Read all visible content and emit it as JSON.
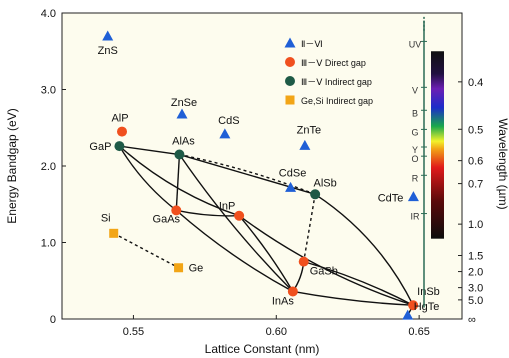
{
  "chart_data": {
    "type": "scatter",
    "xlabel": "Lattice Constant (nm)",
    "ylabel": "Energy Bandgap (eV)",
    "y2label": "Wavelength (µm)",
    "xlim": [
      0.525,
      0.665
    ],
    "ylim": [
      0.0,
      4.0
    ],
    "xticks": [
      "0.55",
      "0.60",
      "0.65"
    ],
    "xtick_values": [
      0.55,
      0.6,
      0.65
    ],
    "yticks": [
      "0",
      "1.0",
      "2.0",
      "3.0",
      "4.0"
    ],
    "ytick_values": [
      0,
      1,
      2,
      3,
      4
    ],
    "wavelength_ticks": [
      {
        "label": "0.4",
        "ev": 3.1
      },
      {
        "label": "0.5",
        "ev": 2.48
      },
      {
        "label": "0.6",
        "ev": 2.07
      },
      {
        "label": "0.7",
        "ev": 1.77
      },
      {
        "label": "1.0",
        "ev": 1.24
      },
      {
        "label": "1.5",
        "ev": 0.83
      },
      {
        "label": "2.0",
        "ev": 0.62
      },
      {
        "label": "3.0",
        "ev": 0.41
      },
      {
        "label": "5.0",
        "ev": 0.25
      },
      {
        "label": "∞",
        "ev": 0.0
      }
    ],
    "spectrum_labels": [
      {
        "label": "UV",
        "ev": 3.55
      },
      {
        "label": "V",
        "ev": 2.95
      },
      {
        "label": "B",
        "ev": 2.65
      },
      {
        "label": "G",
        "ev": 2.4
      },
      {
        "label": "Y",
        "ev": 2.17
      },
      {
        "label": "O",
        "ev": 2.05
      },
      {
        "label": "R",
        "ev": 1.8
      },
      {
        "label": "IR",
        "ev": 1.3
      }
    ],
    "legend": [
      {
        "label": "Ⅱ－Ⅵ",
        "marker": "triangle",
        "color": "#1f5fd6"
      },
      {
        "label": "Ⅲ－Ⅴ Direct gap",
        "marker": "circle",
        "color": "#f0501e"
      },
      {
        "label": "Ⅲ－Ⅴ Indirect gap",
        "marker": "circle",
        "color": "#1e5a46"
      },
      {
        "label": "Ge,Si Indirect gap",
        "marker": "square",
        "color": "#f2a516"
      }
    ],
    "points": [
      {
        "name": "ZnS",
        "x": 0.541,
        "y": 3.7,
        "group": 0
      },
      {
        "name": "ZnSe",
        "x": 0.567,
        "y": 2.68,
        "group": 0
      },
      {
        "name": "CdS",
        "x": 0.582,
        "y": 2.42,
        "group": 0
      },
      {
        "name": "ZnTe",
        "x": 0.61,
        "y": 2.27,
        "group": 0
      },
      {
        "name": "CdSe",
        "x": 0.605,
        "y": 1.72,
        "group": 0
      },
      {
        "name": "CdTe",
        "x": 0.648,
        "y": 1.6,
        "group": 0
      },
      {
        "name": "HgTe",
        "x": 0.646,
        "y": 0.05,
        "group": 0
      },
      {
        "name": "AlP",
        "x": 0.546,
        "y": 2.45,
        "group": 1
      },
      {
        "name": "GaAs",
        "x": 0.565,
        "y": 1.42,
        "group": 1
      },
      {
        "name": "InP",
        "x": 0.587,
        "y": 1.35,
        "group": 1
      },
      {
        "name": "GaSb",
        "x": 0.6096,
        "y": 0.75,
        "group": 1
      },
      {
        "name": "InAs",
        "x": 0.6058,
        "y": 0.36,
        "group": 1
      },
      {
        "name": "InSb",
        "x": 0.6479,
        "y": 0.18,
        "group": 1
      },
      {
        "name": "GaP",
        "x": 0.5451,
        "y": 2.26,
        "group": 2
      },
      {
        "name": "AlAs",
        "x": 0.5661,
        "y": 2.15,
        "group": 2
      },
      {
        "name": "AlSb",
        "x": 0.6136,
        "y": 1.63,
        "group": 2
      },
      {
        "name": "Si",
        "x": 0.5431,
        "y": 1.12,
        "group": 3
      },
      {
        "name": "Ge",
        "x": 0.5658,
        "y": 0.67,
        "group": 3
      }
    ]
  }
}
